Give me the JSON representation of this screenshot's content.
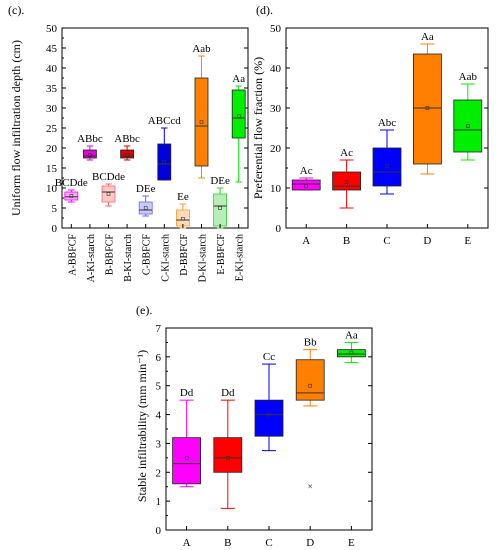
{
  "chart_data": [
    {
      "panel": "(c).",
      "type": "box",
      "ylabel": "Uniform flow infiltration depth (cm)",
      "ylim": [
        0,
        50
      ],
      "yticks": [
        0,
        5,
        10,
        15,
        20,
        25,
        30,
        35,
        40,
        45,
        50
      ],
      "categories": [
        "A-BBFCF",
        "A-KI-starch",
        "B-BBFCF",
        "B-KI-starch",
        "C-BBFCF",
        "C-KI-starch",
        "D-BBFCF",
        "D-KI-starch",
        "E-BBFCF",
        "E-KI-starch"
      ],
      "boxes": [
        {
          "min": 6.5,
          "q1": 7.0,
          "median": 7.8,
          "q3": 9.0,
          "max": 9.5,
          "mean": 8.0,
          "color": "#ff00ff",
          "filled": false,
          "label": "BCDde"
        },
        {
          "min": 17.0,
          "q1": 17.5,
          "median": 18.0,
          "q3": 19.5,
          "max": 20.5,
          "mean": 18.2,
          "color": "#e000e0",
          "filled": true,
          "label": "ABbc"
        },
        {
          "min": 5.5,
          "q1": 6.5,
          "median": 9.0,
          "q3": 10.5,
          "max": 11.0,
          "mean": 8.5,
          "color": "#ff6666",
          "filled": false,
          "label": "BCDde"
        },
        {
          "min": 17.0,
          "q1": 17.5,
          "median": 18.0,
          "q3": 19.5,
          "max": 20.5,
          "mean": 18.2,
          "color": "#dd0000",
          "filled": true,
          "label": "ABbc"
        },
        {
          "min": 3.0,
          "q1": 3.5,
          "median": 4.5,
          "q3": 6.5,
          "max": 8.0,
          "mean": 5.0,
          "color": "#6666ff",
          "filled": false,
          "label": "DEe"
        },
        {
          "min": 12.0,
          "q1": 12.0,
          "median": 16.0,
          "q3": 21.0,
          "max": 25.0,
          "mean": 16.5,
          "color": "#0000dd",
          "filled": true,
          "label": "ABCcd"
        },
        {
          "min": 0.0,
          "q1": 0.5,
          "median": 2.0,
          "q3": 4.5,
          "max": 6.0,
          "mean": 2.3,
          "color": "#ff9933",
          "filled": false,
          "label": "Ee"
        },
        {
          "min": 12.5,
          "q1": 15.5,
          "median": 25.5,
          "q3": 37.5,
          "max": 43.0,
          "mean": 26.5,
          "color": "#ff8000",
          "filled": true,
          "label": "Aab"
        },
        {
          "min": 0.0,
          "q1": 0.5,
          "median": 5.5,
          "q3": 8.5,
          "max": 10.0,
          "mean": 5.0,
          "color": "#33cc33",
          "filled": false,
          "label": "DEe"
        },
        {
          "min": 11.5,
          "q1": 22.5,
          "median": 27.5,
          "q3": 34.5,
          "max": 35.5,
          "mean": 28.0,
          "color": "#00ee00",
          "filled": true,
          "label": "Aa"
        }
      ]
    },
    {
      "panel": "(d).",
      "type": "box",
      "ylabel": "Preferential flow fraction (%)",
      "ylim": [
        0,
        50
      ],
      "yticks": [
        0,
        10,
        20,
        30,
        40,
        50
      ],
      "categories": [
        "A",
        "B",
        "C",
        "D",
        "E"
      ],
      "boxes": [
        {
          "min": 9.5,
          "q1": 9.5,
          "median": 11.0,
          "q3": 12.0,
          "max": 12.5,
          "mean": 10.5,
          "color": "#ff00ff",
          "filled": true,
          "label": "Ac"
        },
        {
          "min": 5.0,
          "q1": 9.5,
          "median": 10.5,
          "q3": 14.0,
          "max": 17.0,
          "mean": 11.5,
          "color": "#ff0000",
          "filled": true,
          "label": "Ac"
        },
        {
          "min": 8.5,
          "q1": 10.5,
          "median": 14.0,
          "q3": 20.0,
          "max": 24.5,
          "mean": 15.5,
          "color": "#0000ff",
          "filled": true,
          "label": "Abc"
        },
        {
          "min": 13.5,
          "q1": 16.0,
          "median": 30.0,
          "q3": 43.5,
          "max": 46.0,
          "mean": 30.0,
          "color": "#ff8000",
          "filled": true,
          "label": "Aa"
        },
        {
          "min": 17.0,
          "q1": 19.0,
          "median": 24.5,
          "q3": 32.0,
          "max": 36.0,
          "mean": 25.5,
          "color": "#00ee00",
          "filled": true,
          "label": "Aab"
        }
      ]
    },
    {
      "panel": "(e).",
      "type": "box",
      "ylabel": "Stable infiltrability (mm min⁻¹)",
      "ylim": [
        0,
        7
      ],
      "yticks": [
        0,
        1,
        2,
        3,
        4,
        5,
        6,
        7
      ],
      "categories": [
        "A",
        "B",
        "C",
        "D",
        "E"
      ],
      "boxes": [
        {
          "min": 1.5,
          "q1": 1.6,
          "median": 2.3,
          "q3": 3.2,
          "max": 4.5,
          "mean": 2.5,
          "color": "#ff00ff",
          "filled": true,
          "label": "Dd"
        },
        {
          "min": 0.75,
          "q1": 2.0,
          "median": 2.5,
          "q3": 3.2,
          "max": 4.5,
          "mean": 2.5,
          "color": "#ff0000",
          "filled": true,
          "label": "Dd"
        },
        {
          "min": 2.75,
          "q1": 3.25,
          "median": 4.0,
          "q3": 4.5,
          "max": 5.75,
          "mean": 4.0,
          "color": "#0000ff",
          "filled": true,
          "label": "Cc"
        },
        {
          "min": 4.3,
          "q1": 4.5,
          "median": 4.75,
          "q3": 5.9,
          "max": 6.25,
          "mean": 5.0,
          "outlier": 1.5,
          "color": "#ff8000",
          "filled": true,
          "label": "Bb"
        },
        {
          "min": 5.8,
          "q1": 6.0,
          "median": 6.1,
          "q3": 6.25,
          "max": 6.5,
          "mean": 6.15,
          "color": "#00ee00",
          "filled": true,
          "label": "Aa"
        }
      ]
    }
  ]
}
